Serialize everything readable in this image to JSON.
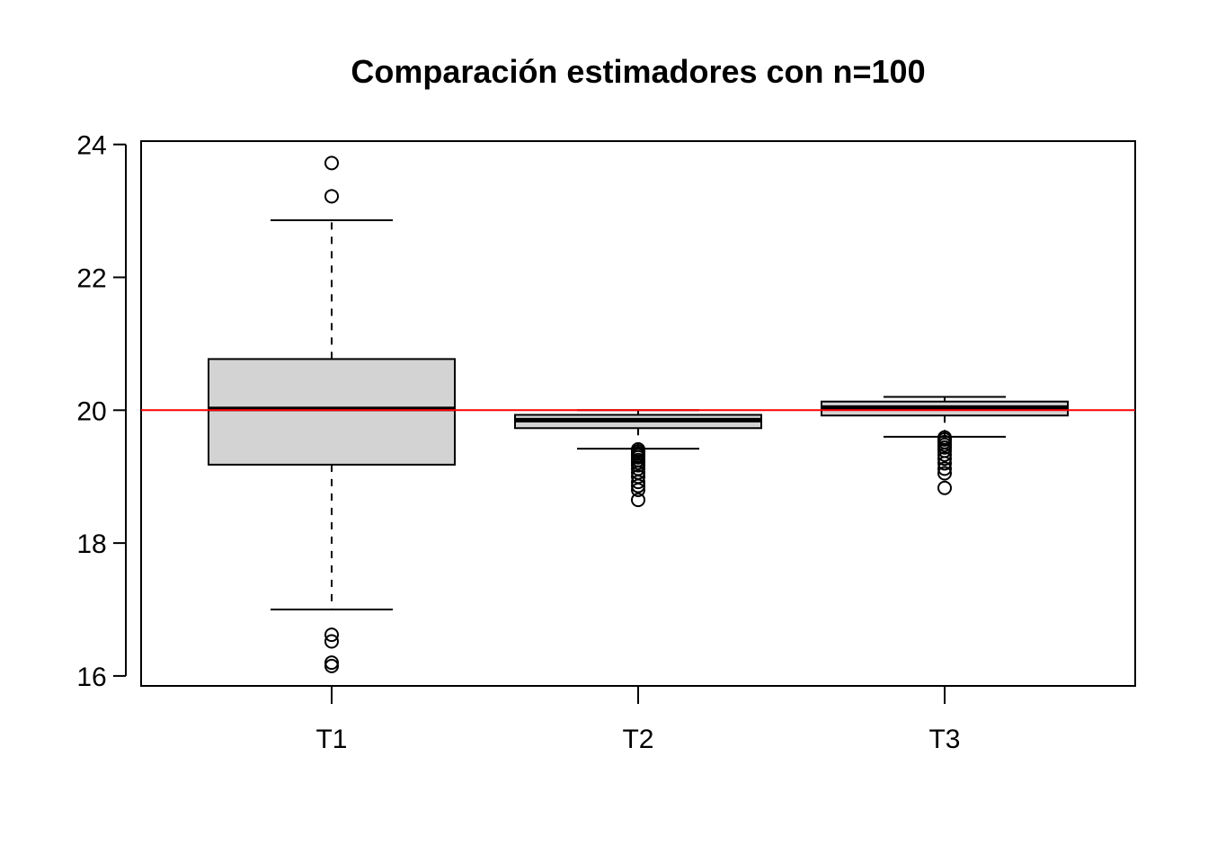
{
  "chart_data": {
    "type": "boxplot",
    "title": "Comparación estimadores con n=100",
    "xlabel": "",
    "ylabel": "",
    "ylim": [
      15.85,
      24.05
    ],
    "yticks": [
      16,
      18,
      20,
      22,
      24
    ],
    "categories": [
      "T1",
      "T2",
      "T3"
    ],
    "reference_line": {
      "y": 20,
      "color": "#ff0000"
    },
    "box_fill": "#d3d3d3",
    "grid": false,
    "boxes": [
      {
        "name": "T1",
        "whisker_low": 17.0,
        "q1": 19.18,
        "median": 20.02,
        "q3": 20.77,
        "whisker_high": 22.86,
        "outliers": [
          23.72,
          23.22,
          16.62,
          16.52,
          16.2,
          16.15
        ]
      },
      {
        "name": "T2",
        "whisker_low": 19.42,
        "q1": 19.73,
        "median": 19.85,
        "q3": 19.93,
        "whisker_high": 20.0,
        "outliers": [
          19.41,
          19.38,
          19.35,
          19.32,
          19.29,
          19.25,
          19.21,
          19.17,
          19.12,
          19.06,
          19.0,
          18.92,
          18.86,
          18.8,
          18.65
        ]
      },
      {
        "name": "T3",
        "whisker_low": 19.6,
        "q1": 19.92,
        "median": 20.04,
        "q3": 20.13,
        "whisker_high": 20.2,
        "outliers": [
          19.59,
          19.56,
          19.52,
          19.48,
          19.44,
          19.39,
          19.33,
          19.27,
          19.2,
          19.12,
          19.05,
          18.83
        ]
      }
    ]
  }
}
